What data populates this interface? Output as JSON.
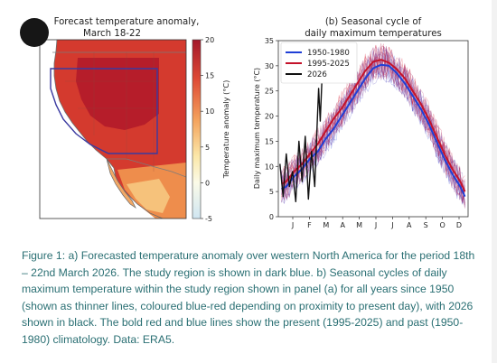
{
  "caption": "Figure 1: a) Forecasted temperature anomaly over western North America for the period 18th – 22nd March 2026. The study region is shown in dark blue. b) Seasonal cycles of daily maximum temperature within the study region shown in panel (a) for all years since 1950 (shown as thinner lines, coloured blue-red depending on proximity to present day), with 2026 shown in black. The bold red and blue lines show the present (1995-2025) and past (1950-1980) climatology. Data: ERA5.",
  "colors": {
    "caption": "#2a6f73",
    "region_box": "#3a3aa0",
    "past": "#1f3fd6",
    "present": "#c4122a",
    "current": "#111111"
  },
  "chart_data": [
    {
      "type": "heatmap",
      "title": "Forecast temperature anomaly,",
      "subtitle": "March 18-22",
      "colorbar_label": "Temperature anomaly (°C)",
      "colorbar_ticks": [
        20,
        15,
        10,
        5,
        0,
        -5
      ],
      "colorbar_range": [
        -5,
        20
      ],
      "colormap": "blue-white-yellow-red",
      "study_region": "dark-blue box over the interior western US"
    },
    {
      "type": "line",
      "title": "(b) Seasonal cycle of",
      "subtitle": "daily maximum temperatures",
      "ylabel": "Daily maximum temperature (°C)",
      "ylim": [
        0,
        35
      ],
      "yticks": [
        0,
        5,
        10,
        15,
        20,
        25,
        30,
        35
      ],
      "xlim": [
        0,
        12
      ],
      "xticks": [
        "J",
        "F",
        "M",
        "A",
        "M",
        "J",
        "J",
        "A",
        "S",
        "O",
        "D"
      ],
      "legend_position": "top-left",
      "grid": false,
      "series": [
        {
          "name": "1950-1980",
          "color": "#1f3fd6",
          "x": [
            0.2,
            0.5,
            1,
            1.5,
            2,
            2.5,
            3,
            3.5,
            4,
            4.5,
            5,
            5.5,
            6,
            6.5,
            7,
            7.5,
            8,
            8.5,
            9,
            9.5,
            10,
            10.5,
            11,
            11.5,
            11.8
          ],
          "y": [
            5.5,
            6,
            8,
            9.5,
            11.5,
            13,
            15.5,
            17.5,
            20,
            22.5,
            25,
            27.5,
            29.5,
            30.2,
            30,
            28.5,
            26.5,
            24,
            21.5,
            18.5,
            15,
            11.5,
            8.5,
            6,
            4
          ]
        },
        {
          "name": "1995-2025",
          "color": "#c4122a",
          "x": [
            0.2,
            0.5,
            1,
            1.5,
            2,
            2.5,
            3,
            3.5,
            4,
            4.5,
            5,
            5.5,
            6,
            6.5,
            7,
            7.5,
            8,
            8.5,
            9,
            9.5,
            10,
            10.5,
            11,
            11.5,
            11.8
          ],
          "y": [
            6.5,
            7,
            9,
            10.5,
            12.5,
            14.5,
            17,
            19.5,
            21.5,
            24,
            26.5,
            29,
            30.8,
            31.2,
            30.6,
            29.3,
            27.5,
            25,
            22.5,
            19.5,
            16,
            12.5,
            9.5,
            7,
            5
          ]
        },
        {
          "name": "2026",
          "color": "#111111",
          "x": [
            0.1,
            0.3,
            0.5,
            0.7,
            0.9,
            1.1,
            1.3,
            1.5,
            1.7,
            1.9,
            2.1,
            2.3,
            2.45,
            2.55,
            2.65,
            2.75
          ],
          "y": [
            10.5,
            4,
            12.5,
            6,
            9,
            3,
            15,
            7,
            16,
            3.5,
            13,
            6,
            18,
            25.5,
            19,
            26.5
          ]
        }
      ]
    }
  ]
}
